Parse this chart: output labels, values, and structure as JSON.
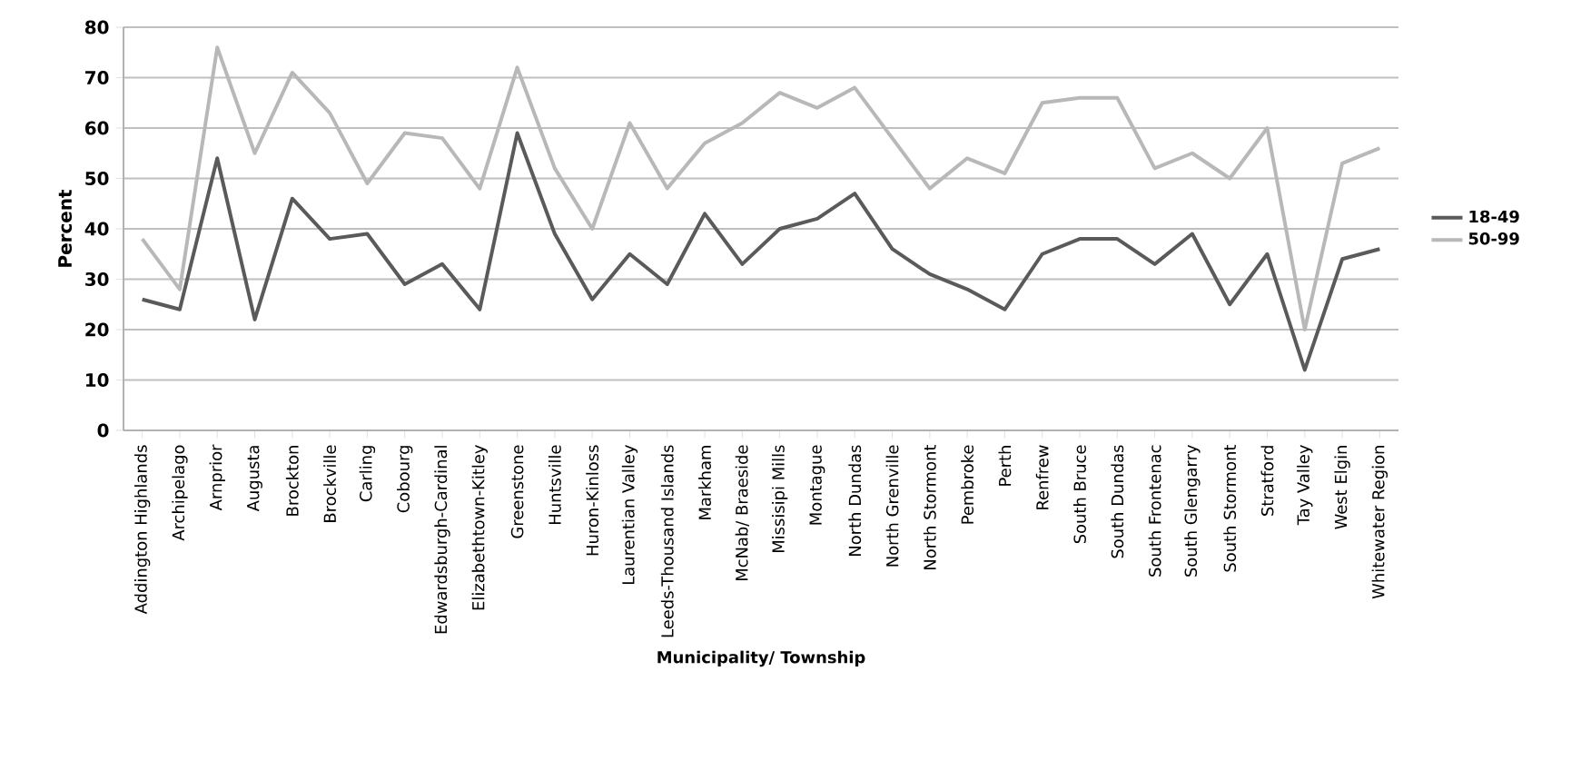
{
  "chart_data": {
    "type": "line",
    "xlabel": "Municipality/ Township",
    "ylabel": "Percent",
    "categories": [
      "Addington Highlands",
      "Archipelago",
      "Arnprior",
      "Augusta",
      "Brockton",
      "Brockville",
      "Carling",
      "Cobourg",
      "Edwardsburgh-Cardinal",
      "Elizabethtown-Kitley",
      "Greenstone",
      "Huntsville",
      "Huron-Kinloss",
      "Laurentian Valley",
      "Leeds-Thousand Islands",
      "Markham",
      "McNab/ Braeside",
      "Missisipi Mills",
      "Montague",
      "North Dundas",
      "North Grenville",
      "North Stormont",
      "Pembroke",
      "Perth",
      "Renfrew",
      "South Bruce",
      "South Dundas",
      "South Frontenac",
      "South Glengarry",
      "South Stormont",
      "Stratford",
      "Tay Valley",
      "West Elgin",
      "Whitewater Region"
    ],
    "series": [
      {
        "name": "18-49",
        "color": "#5a5a5a",
        "values": [
          26,
          24,
          54,
          22,
          46,
          38,
          39,
          29,
          33,
          24,
          59,
          39,
          26,
          35,
          29,
          43,
          33,
          40,
          42,
          47,
          36,
          31,
          28,
          24,
          35,
          38,
          38,
          33,
          39,
          25,
          35,
          12,
          34,
          36
        ]
      },
      {
        "name": "50-99",
        "color": "#b8b8b8",
        "values": [
          38,
          28,
          76,
          55,
          71,
          63,
          49,
          59,
          58,
          48,
          72,
          52,
          40,
          61,
          48,
          57,
          61,
          67,
          64,
          68,
          58,
          48,
          54,
          51,
          65,
          66,
          66,
          52,
          55,
          50,
          60,
          20,
          53,
          56
        ]
      }
    ],
    "ylim": [
      0,
      80
    ],
    "yticks": [
      0,
      10,
      20,
      30,
      40,
      50,
      60,
      70,
      80
    ],
    "grid": "y",
    "legend": "right",
    "marker": "none",
    "line_style": "solid"
  }
}
